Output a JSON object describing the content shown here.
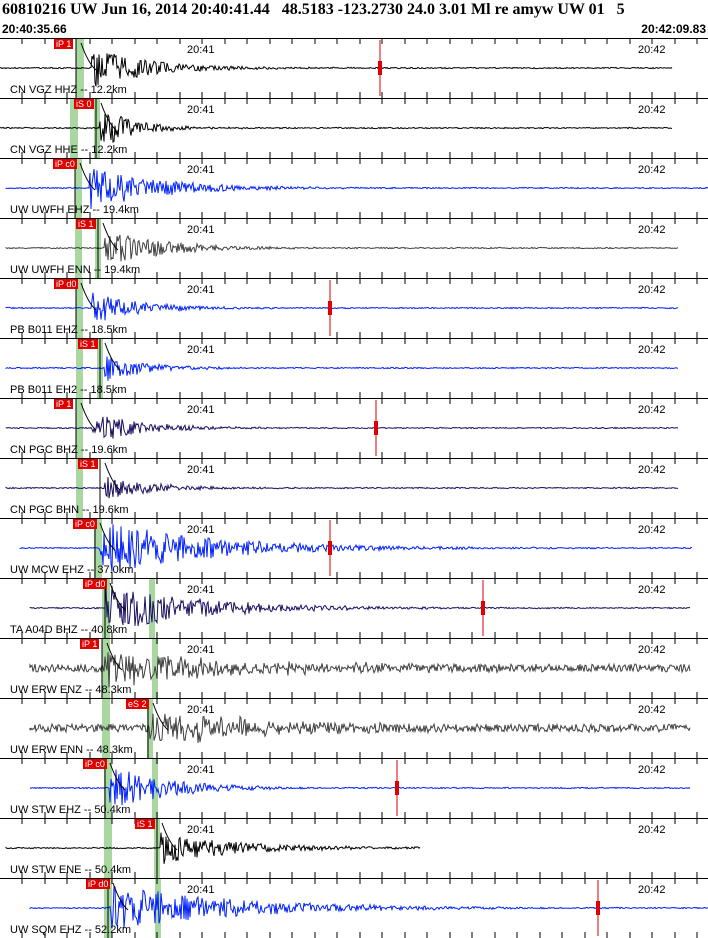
{
  "header": {
    "title": "60810216 UW Jun 16, 2014 20:40:41.44   48.5183 -123.2730 24.0 3.01 Ml re amyw UW 01   5",
    "start_time": "20:40:35.66",
    "end_time": "20:42:09.83"
  },
  "colors": {
    "black_trace": "#000000",
    "blue_trace": "#0020ff",
    "gray_trace": "#404040",
    "pick_red": "#e00000",
    "window_green": "#a8d8a0"
  },
  "traces": [
    {
      "label": "CN VGZ HHZ -- 12.2km",
      "pick": "iP 1",
      "color": "black",
      "time1": "20:41",
      "time2": "20:42"
    },
    {
      "label": "CN VGZ HHE -- 12.2km",
      "pick": "iS 0",
      "color": "black",
      "time1": "20:41",
      "time2": "20:42"
    },
    {
      "label": "UW UWFH EHZ -- 19.4km",
      "pick": "iP c0",
      "color": "blue",
      "time1": "20:41",
      "time2": "20:42"
    },
    {
      "label": "UW UWFH ENN -- 19.4km",
      "pick": "iS 1",
      "color": "gray",
      "time1": "20:41",
      "time2": "20:42"
    },
    {
      "label": "PB B011 EHZ -- 18.5km",
      "pick": "iP d0",
      "color": "blue",
      "time1": "20:41",
      "time2": "20:42"
    },
    {
      "label": "PB B011 EH2 -- 18.5km",
      "pick": "iS 1",
      "color": "blue",
      "time1": "20:41",
      "time2": "20:42"
    },
    {
      "label": "CN PGC BHZ -- 19.6km",
      "pick": "iP 1",
      "color": "navy",
      "time1": "20:41",
      "time2": "20:42"
    },
    {
      "label": "CN PGC BHN -- 19.6km",
      "pick": "iS 1",
      "color": "navy",
      "time1": "20:41",
      "time2": "20:42"
    },
    {
      "label": "UW MCW EHZ -- 37.0km",
      "pick": "iP c0",
      "color": "blue",
      "time1": "20:41",
      "time2": "20:42"
    },
    {
      "label": "TA A04D BHZ -- 40.8km",
      "pick": "iP d0",
      "color": "navy",
      "time1": "20:41",
      "time2": "20:42"
    },
    {
      "label": "UW ERW ENZ -- 48.3km",
      "pick": "iP 1",
      "color": "gray",
      "time1": "20:41",
      "time2": "20:42"
    },
    {
      "label": "UW ERW ENN -- 48.3km",
      "pick": "eS 2",
      "color": "gray",
      "time1": "20:41",
      "time2": "20:42"
    },
    {
      "label": "UW STW EHZ -- 50.4km",
      "pick": "iP c0",
      "color": "blue",
      "time1": "20:41",
      "time2": "20:42"
    },
    {
      "label": "UW STW ENE -- 50.4km",
      "pick": "iS 1",
      "color": "black",
      "time1": "20:41",
      "time2": "20:42"
    },
    {
      "label": "UW SQM EHZ -- 52.2km",
      "pick": "iP d0",
      "color": "blue",
      "time1": "20:41",
      "time2": "20:42"
    }
  ]
}
